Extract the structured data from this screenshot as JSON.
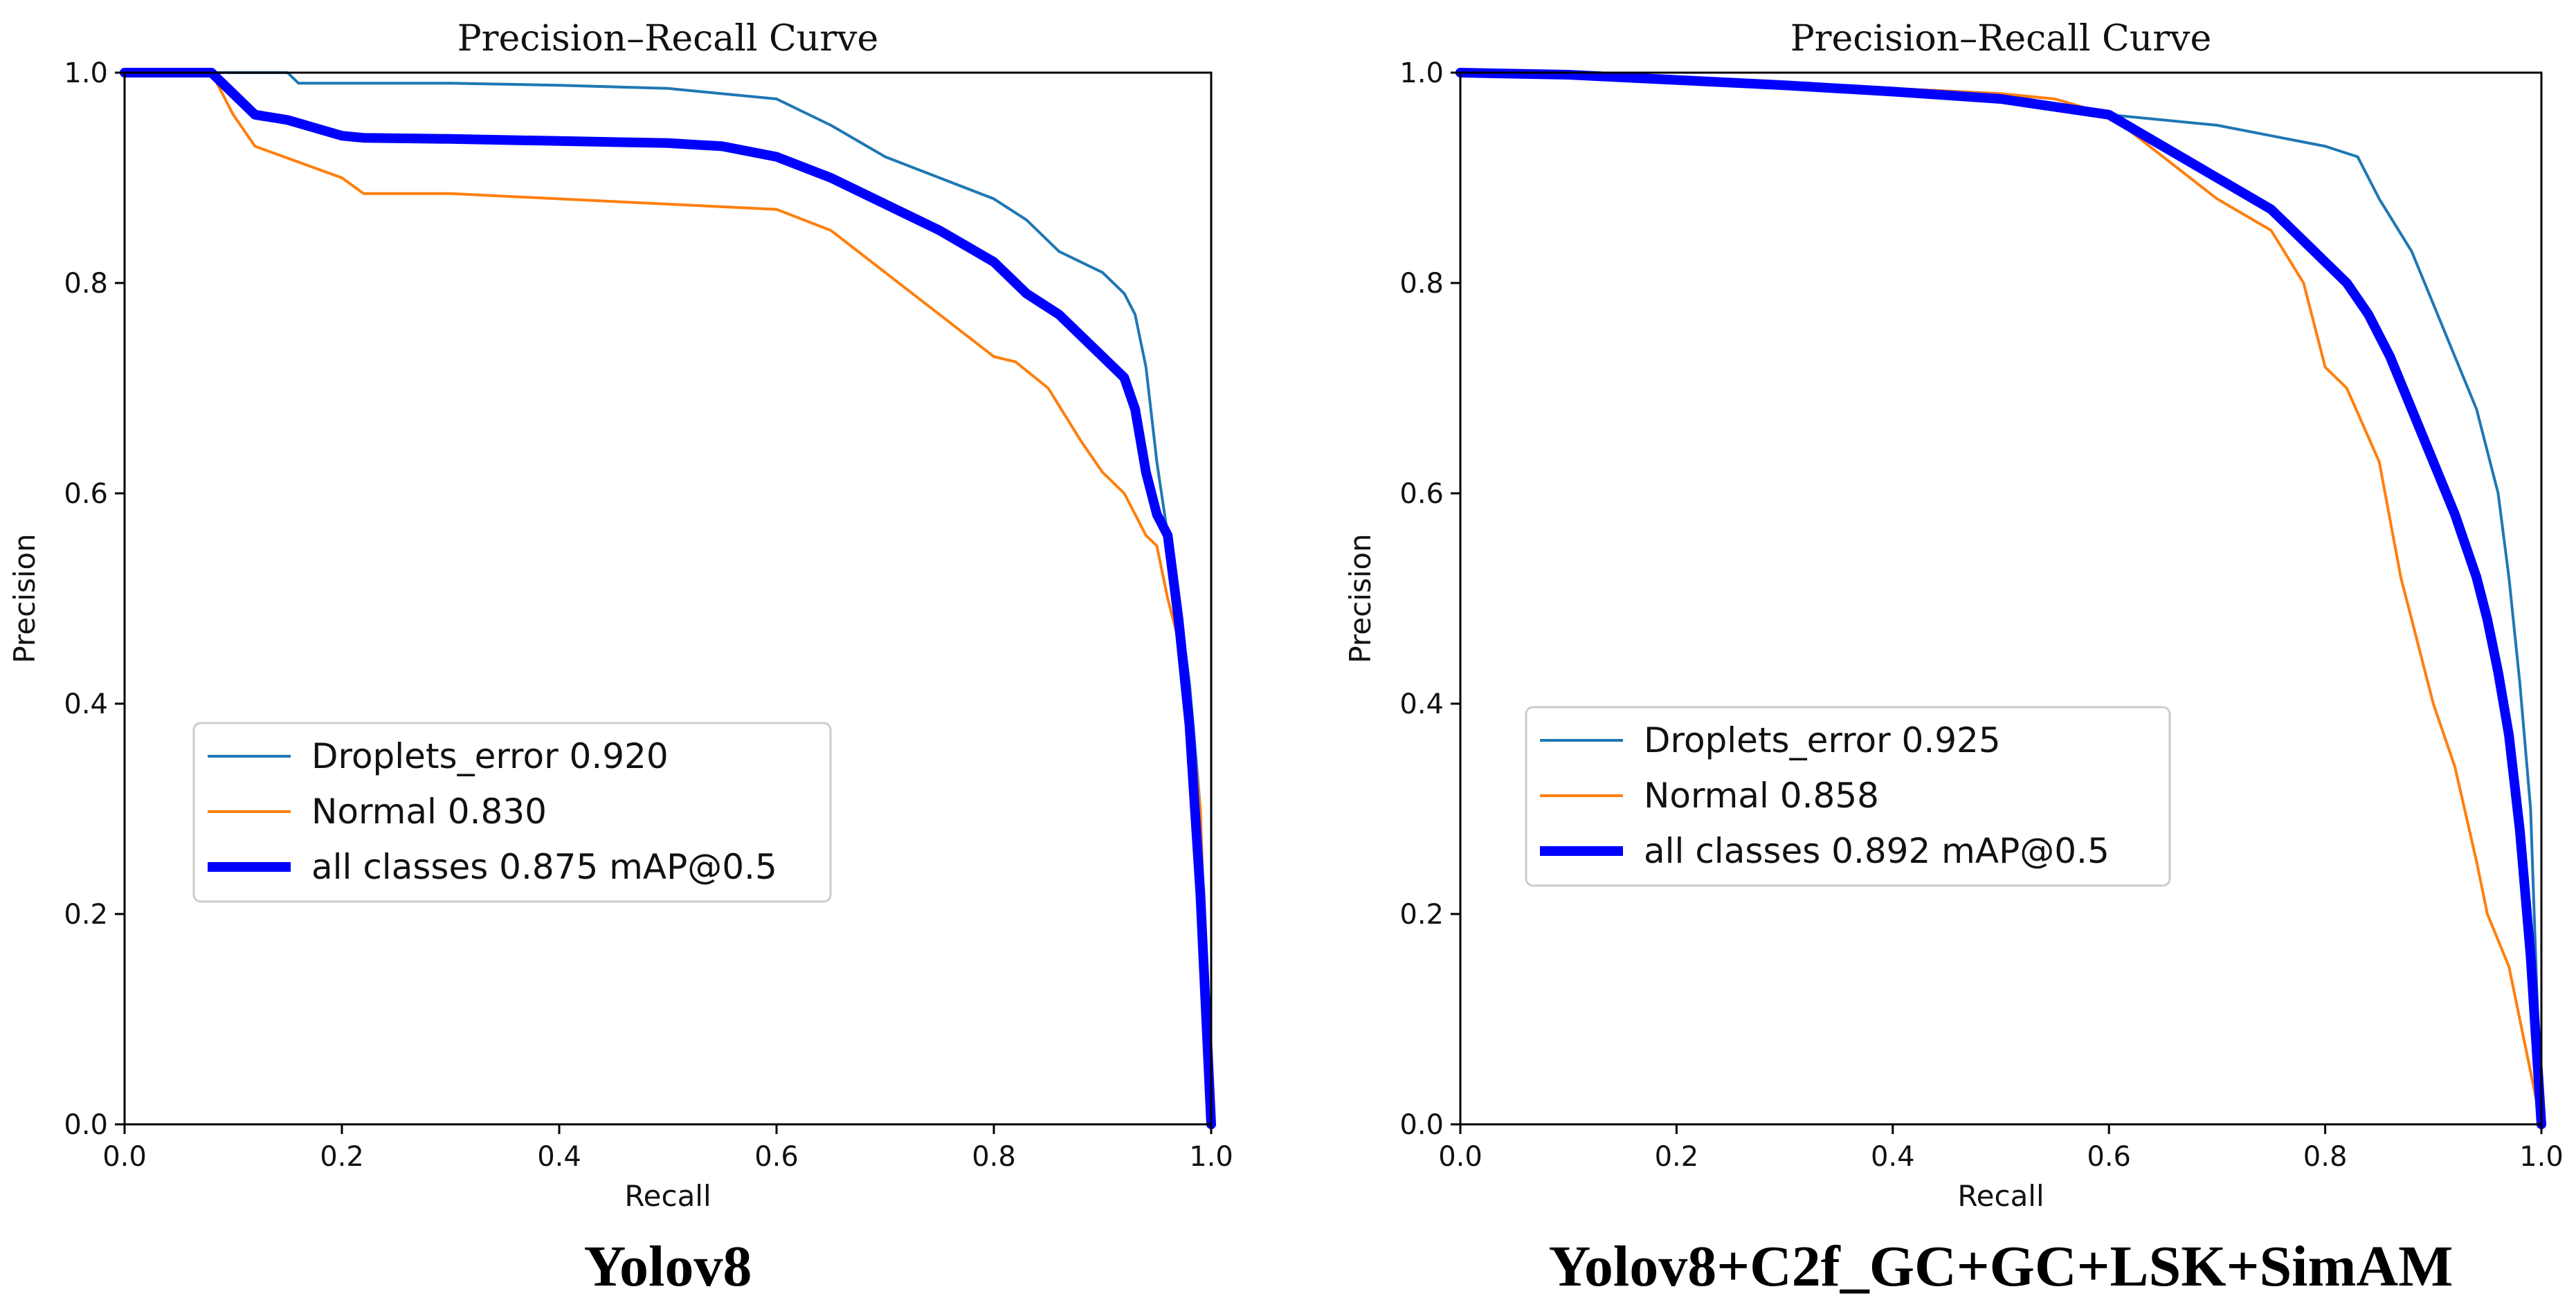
{
  "colors": {
    "droplets": "#1f77b4",
    "normal": "#ff7f0e",
    "all": "#0000ff",
    "axis": "#000000"
  },
  "chart_data": [
    {
      "type": "line",
      "title": "Precision–Recall Curve",
      "xlabel": "Recall",
      "ylabel": "Precision",
      "caption": "Yolov8",
      "xlim": [
        0,
        1
      ],
      "ylim": [
        0,
        1
      ],
      "xticks": [
        "0.0",
        "0.2",
        "0.4",
        "0.6",
        "0.8",
        "1.0"
      ],
      "yticks": [
        "0.0",
        "0.2",
        "0.4",
        "0.6",
        "0.8",
        "1.0"
      ],
      "grid": false,
      "legend_position": "center-left",
      "series": [
        {
          "name": "Droplets_error 0.920",
          "color_key": "droplets",
          "x": [
            0,
            0.08,
            0.15,
            0.16,
            0.3,
            0.4,
            0.5,
            0.6,
            0.65,
            0.7,
            0.75,
            0.8,
            0.83,
            0.86,
            0.9,
            0.92,
            0.93,
            0.94,
            0.95,
            0.96,
            0.97,
            0.98,
            0.99,
            1.0
          ],
          "y": [
            1.0,
            1.0,
            1.0,
            0.99,
            0.99,
            0.988,
            0.985,
            0.975,
            0.95,
            0.92,
            0.9,
            0.88,
            0.86,
            0.83,
            0.81,
            0.79,
            0.77,
            0.72,
            0.63,
            0.56,
            0.5,
            0.42,
            0.3,
            0.0
          ]
        },
        {
          "name": "Normal 0.830",
          "color_key": "normal",
          "x": [
            0,
            0.08,
            0.1,
            0.12,
            0.2,
            0.22,
            0.3,
            0.4,
            0.5,
            0.6,
            0.65,
            0.7,
            0.75,
            0.8,
            0.82,
            0.85,
            0.88,
            0.9,
            0.92,
            0.93,
            0.94,
            0.95,
            0.96,
            0.97,
            0.98,
            0.99,
            1.0
          ],
          "y": [
            1.0,
            1.0,
            0.96,
            0.93,
            0.9,
            0.885,
            0.885,
            0.88,
            0.875,
            0.87,
            0.85,
            0.81,
            0.77,
            0.73,
            0.725,
            0.7,
            0.65,
            0.62,
            0.6,
            0.58,
            0.56,
            0.55,
            0.5,
            0.46,
            0.4,
            0.3,
            0.0
          ]
        },
        {
          "name": "all classes 0.875 mAP@0.5",
          "color_key": "all",
          "x": [
            0,
            0.05,
            0.08,
            0.1,
            0.12,
            0.15,
            0.2,
            0.22,
            0.3,
            0.4,
            0.5,
            0.55,
            0.6,
            0.65,
            0.7,
            0.75,
            0.8,
            0.83,
            0.86,
            0.88,
            0.9,
            0.92,
            0.93,
            0.94,
            0.95,
            0.96,
            0.97,
            0.98,
            0.99,
            1.0
          ],
          "y": [
            1.0,
            1.0,
            1.0,
            0.98,
            0.96,
            0.955,
            0.94,
            0.938,
            0.937,
            0.935,
            0.933,
            0.93,
            0.92,
            0.9,
            0.875,
            0.85,
            0.82,
            0.79,
            0.77,
            0.75,
            0.73,
            0.71,
            0.68,
            0.62,
            0.58,
            0.56,
            0.48,
            0.38,
            0.22,
            0.0
          ]
        }
      ]
    },
    {
      "type": "line",
      "title": "Precision–Recall Curve",
      "xlabel": "Recall",
      "ylabel": "Precision",
      "caption": "Yolov8+C2f_GC+GC+LSK+SimAM",
      "xlim": [
        0,
        1
      ],
      "ylim": [
        0,
        1
      ],
      "xticks": [
        "0.0",
        "0.2",
        "0.4",
        "0.6",
        "0.8",
        "1.0"
      ],
      "yticks": [
        "0.0",
        "0.2",
        "0.4",
        "0.6",
        "0.8",
        "1.0"
      ],
      "grid": false,
      "legend_position": "center-left",
      "series": [
        {
          "name": "Droplets_error 0.925",
          "color_key": "droplets",
          "x": [
            0,
            0.1,
            0.2,
            0.3,
            0.4,
            0.5,
            0.6,
            0.65,
            0.7,
            0.75,
            0.8,
            0.83,
            0.85,
            0.88,
            0.9,
            0.92,
            0.94,
            0.96,
            0.97,
            0.98,
            0.99,
            1.0
          ],
          "y": [
            1.0,
            0.998,
            0.995,
            0.99,
            0.985,
            0.98,
            0.96,
            0.955,
            0.95,
            0.94,
            0.93,
            0.92,
            0.88,
            0.83,
            0.78,
            0.73,
            0.68,
            0.6,
            0.52,
            0.42,
            0.3,
            0.0
          ]
        },
        {
          "name": "Normal 0.858",
          "color_key": "normal",
          "x": [
            0,
            0.1,
            0.2,
            0.3,
            0.4,
            0.5,
            0.55,
            0.6,
            0.65,
            0.7,
            0.75,
            0.78,
            0.8,
            0.82,
            0.85,
            0.87,
            0.88,
            0.9,
            0.92,
            0.94,
            0.95,
            0.97,
            1.0
          ],
          "y": [
            1.0,
            0.998,
            0.995,
            0.99,
            0.985,
            0.98,
            0.975,
            0.96,
            0.92,
            0.88,
            0.85,
            0.8,
            0.72,
            0.7,
            0.63,
            0.52,
            0.48,
            0.4,
            0.34,
            0.25,
            0.2,
            0.15,
            0.0
          ]
        },
        {
          "name": "all classes 0.892 mAP@0.5",
          "color_key": "all",
          "x": [
            0,
            0.1,
            0.2,
            0.3,
            0.4,
            0.5,
            0.6,
            0.65,
            0.7,
            0.75,
            0.78,
            0.8,
            0.82,
            0.84,
            0.86,
            0.88,
            0.9,
            0.92,
            0.94,
            0.95,
            0.96,
            0.97,
            0.98,
            0.99,
            1.0
          ],
          "y": [
            1.0,
            0.998,
            0.993,
            0.988,
            0.982,
            0.975,
            0.96,
            0.93,
            0.9,
            0.87,
            0.84,
            0.82,
            0.8,
            0.77,
            0.73,
            0.68,
            0.63,
            0.58,
            0.52,
            0.48,
            0.43,
            0.37,
            0.28,
            0.16,
            0.0
          ]
        }
      ]
    }
  ]
}
